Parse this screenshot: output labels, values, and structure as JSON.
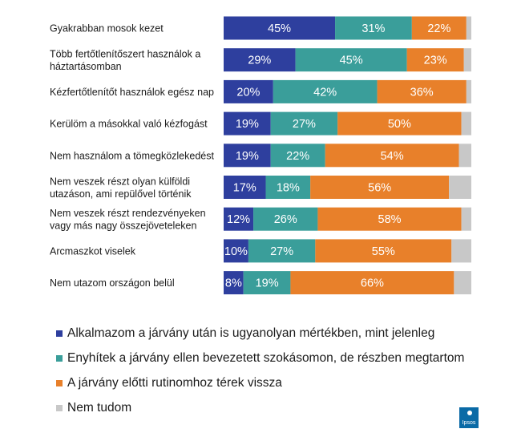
{
  "chart_data": {
    "type": "bar",
    "orientation": "horizontal",
    "stacked": true,
    "categories": [
      [
        "Gyakrabban mosok kezet"
      ],
      [
        "Több fertőtlenítőszert használok a",
        "háztartásomban"
      ],
      [
        "Kézfertőtlenítőt használok egész nap"
      ],
      [
        "Kerülöm a másokkal való kézfogást"
      ],
      [
        "Nem használom a tömegközlekedést"
      ],
      [
        "Nem veszek részt olyan külföldi",
        "utazáson, ami repülővel történik"
      ],
      [
        "Nem veszek részt rendezvényeken",
        "vagy más nagy összejöveteleken"
      ],
      [
        "Arcmaszkot viselek"
      ],
      [
        "Nem utazom országon belül"
      ]
    ],
    "series": [
      {
        "name": "Alkalmazom a járvány után is ugyanolyan mértékben, mint jelenleg",
        "color": "#2e3f9e",
        "values": [
          45,
          29,
          20,
          19,
          19,
          17,
          12,
          10,
          8
        ]
      },
      {
        "name": "Enyhítek a járvány ellen bevezetett szokásomon, de részben megtartom",
        "color": "#3a9e9a",
        "values": [
          31,
          45,
          42,
          27,
          22,
          18,
          26,
          27,
          19
        ]
      },
      {
        "name": "A járvány előtti rutinomhoz térek vissza",
        "color": "#e8802a",
        "values": [
          22,
          23,
          36,
          50,
          54,
          56,
          58,
          55,
          66
        ]
      },
      {
        "name": "Nem tudom",
        "color": "#c8c8c8",
        "values": [
          2,
          3,
          2,
          4,
          5,
          9,
          4,
          8,
          7
        ]
      }
    ],
    "value_suffix": "%",
    "xlim": [
      0,
      100
    ],
    "legend_position": "bottom",
    "grid": false
  },
  "logo": {
    "text": "Ipsos"
  }
}
